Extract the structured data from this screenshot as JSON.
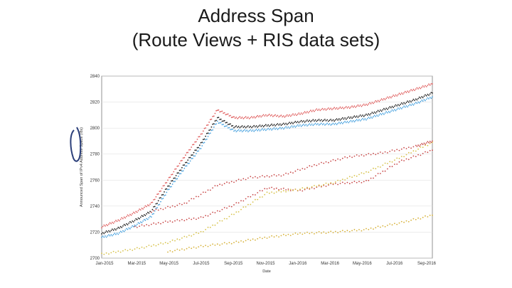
{
  "slide": {
    "title_line1": "Address Span",
    "title_line2": "(Route Views + RIS data sets)"
  },
  "chart_data": {
    "type": "scatter",
    "title": "Address Span (Route Views + RIS data sets)",
    "xlabel": "Date",
    "ylabel": "Announced Span of IPv4 Address Space (/8s)",
    "xlim": [
      "2015-01-01",
      "2016-10-01"
    ],
    "ylim": [
      2700,
      2840
    ],
    "x_ticks": [
      "Jan-2015",
      "Mar-2015",
      "May-2015",
      "Jul-2015",
      "Sep-2015",
      "Nov-2015",
      "Jan-2016",
      "Mar-2016",
      "May-2016",
      "Jul-2016",
      "Sep-2016"
    ],
    "y_ticks": [
      2700,
      2720,
      2740,
      2760,
      2780,
      2800,
      2820,
      2840
    ],
    "grid": true,
    "legend": "none",
    "series": [
      {
        "color": "#e06060",
        "offset": 2,
        "x": [
          0,
          5,
          10,
          15,
          20,
          25,
          30,
          35,
          40,
          45,
          50,
          55,
          60,
          65,
          70,
          75,
          80,
          85,
          90,
          95,
          100
        ],
        "y": [
          2722,
          2727,
          2733,
          2740,
          2758,
          2776,
          2793,
          2812,
          2806,
          2806,
          2808,
          2807,
          2809,
          2812,
          2813,
          2814,
          2816,
          2820,
          2824,
          2828,
          2832
        ]
      },
      {
        "color": "#222222",
        "offset": 0,
        "x": [
          0,
          5,
          10,
          15,
          20,
          25,
          30,
          35,
          40,
          45,
          50,
          55,
          60,
          65,
          70,
          75,
          80,
          85,
          90,
          95,
          100
        ],
        "y": [
          2719,
          2723,
          2729,
          2736,
          2755,
          2772,
          2788,
          2808,
          2801,
          2801,
          2802,
          2803,
          2805,
          2806,
          2806,
          2808,
          2810,
          2814,
          2818,
          2822,
          2827
        ]
      },
      {
        "color": "#4aa3df",
        "offset": -1,
        "x": [
          0,
          5,
          10,
          15,
          20,
          25,
          30,
          35,
          40,
          45,
          50,
          55,
          60,
          65,
          70,
          75,
          80,
          85,
          90,
          95,
          100
        ],
        "y": [
          2717,
          2720,
          2726,
          2733,
          2753,
          2770,
          2786,
          2806,
          2799,
          2799,
          2800,
          2801,
          2803,
          2804,
          2804,
          2806,
          2808,
          2812,
          2816,
          2820,
          2825
        ]
      },
      {
        "color": "#c84848",
        "offset": 0,
        "x": [
          10,
          20,
          30,
          40,
          50,
          60,
          70,
          80,
          90,
          100
        ],
        "y": [
          2724,
          2728,
          2731,
          2741,
          2754,
          2752,
          2757,
          2759,
          2774,
          2783
        ]
      },
      {
        "color": "#d7c24a",
        "offset": 0,
        "x": [
          0,
          10,
          20,
          30,
          40,
          50,
          60,
          70,
          80,
          90,
          100
        ],
        "y": [
          2703,
          2707,
          2712,
          2720,
          2734,
          2750,
          2753,
          2758,
          2766,
          2777,
          2789
        ]
      },
      {
        "color": "#c94a4a",
        "offset": 0,
        "x": [
          15,
          25,
          35,
          45,
          55,
          65,
          75,
          85,
          95,
          100
        ],
        "y": [
          2736,
          2742,
          2756,
          2762,
          2764,
          2772,
          2778,
          2781,
          2786,
          2790
        ]
      },
      {
        "color": "#d7b23a",
        "offset": 0,
        "x": [
          20,
          30,
          40,
          50,
          60,
          70,
          80,
          90,
          100
        ],
        "y": [
          2705,
          2709,
          2712,
          2716,
          2719,
          2720,
          2722,
          2727,
          2733
        ]
      }
    ]
  }
}
